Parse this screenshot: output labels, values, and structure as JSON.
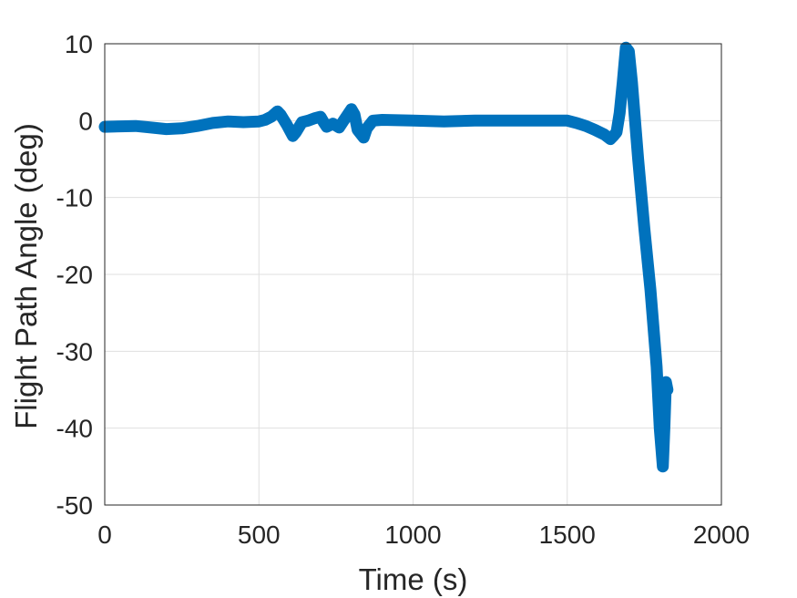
{
  "chart_data": {
    "type": "line",
    "title": "",
    "xlabel": "Time (s)",
    "ylabel": "Flight Path Angle (deg)",
    "xlim": [
      0,
      2000
    ],
    "ylim": [
      -50,
      10
    ],
    "xticks": [
      0,
      500,
      1000,
      1500,
      2000
    ],
    "yticks": [
      10,
      0,
      -10,
      -20,
      -30,
      -40,
      -50
    ],
    "xtick_labels": [
      "0",
      "500",
      "1000",
      "1500",
      "2000"
    ],
    "ytick_labels": [
      "10",
      "0",
      "-10",
      "-20",
      "-30",
      "-40",
      "-50"
    ],
    "grid": true,
    "legend": "none",
    "series": [
      {
        "color": "#0072BD",
        "x": [
          0,
          100,
          150,
          200,
          250,
          300,
          350,
          400,
          450,
          500,
          520,
          540,
          560,
          570,
          590,
          610,
          620,
          640,
          660,
          680,
          700,
          710,
          720,
          740,
          760,
          780,
          800,
          810,
          820,
          840,
          850,
          870,
          900,
          1000,
          1100,
          1200,
          1300,
          1400,
          1500,
          1530,
          1560,
          1590,
          1620,
          1640,
          1650,
          1660,
          1670,
          1680,
          1690,
          1700,
          1710,
          1730,
          1750,
          1770,
          1790,
          1800,
          1810,
          1815,
          1820,
          1825
        ],
        "y": [
          -0.8,
          -0.7,
          -0.9,
          -1.1,
          -1.0,
          -0.7,
          -0.3,
          -0.1,
          -0.2,
          -0.1,
          0.1,
          0.5,
          1.2,
          0.8,
          -0.5,
          -2.0,
          -1.5,
          -0.2,
          0.0,
          0.3,
          0.5,
          -0.2,
          -0.8,
          -0.4,
          -0.9,
          0.3,
          1.5,
          0.8,
          -1.2,
          -2.2,
          -1.0,
          0.0,
          0.1,
          0.0,
          -0.1,
          0.0,
          0.0,
          0.0,
          0.0,
          -0.3,
          -0.7,
          -1.2,
          -1.8,
          -2.4,
          -2.0,
          -1.5,
          1.0,
          5.0,
          9.5,
          9.0,
          5.0,
          -5.0,
          -14.0,
          -22.0,
          -32.0,
          -40.0,
          -45.0,
          -40.0,
          -34.0,
          -35.0
        ]
      }
    ]
  }
}
